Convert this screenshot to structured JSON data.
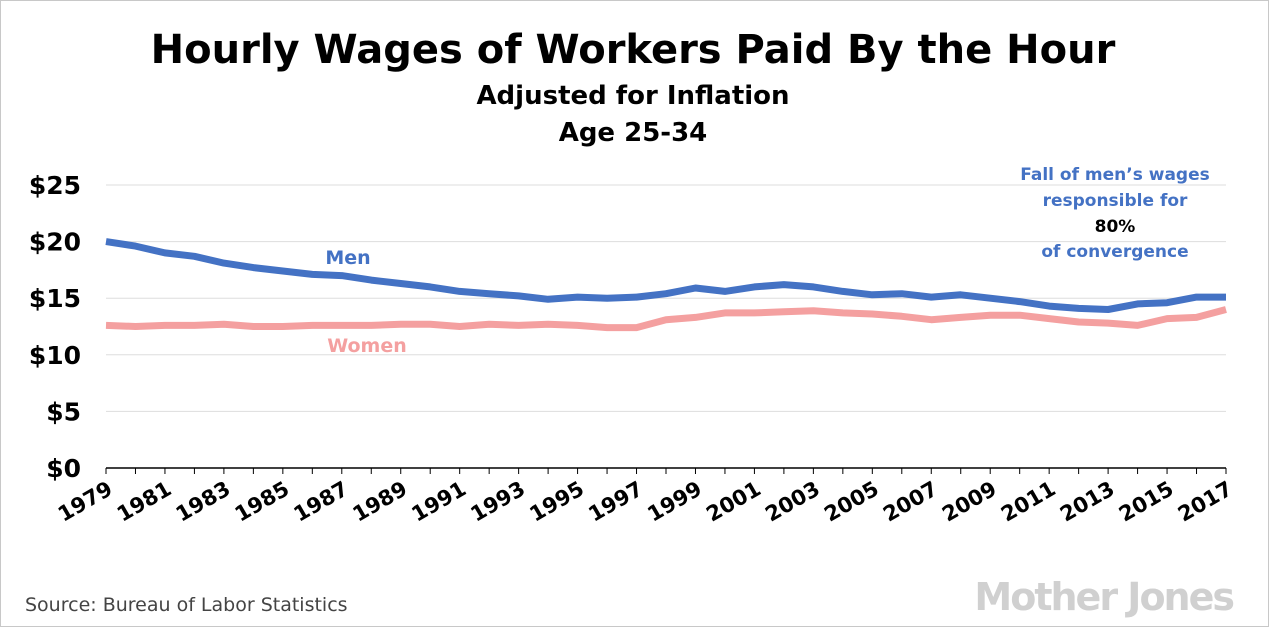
{
  "chart_data": {
    "type": "line",
    "title": "Hourly Wages of Workers Paid By the Hour",
    "subtitle_lines": [
      "Adjusted for Inflation",
      "Age 25-34"
    ],
    "x": [
      1979,
      1980,
      1981,
      1982,
      1983,
      1984,
      1985,
      1986,
      1987,
      1988,
      1989,
      1990,
      1991,
      1992,
      1993,
      1994,
      1995,
      1996,
      1997,
      1998,
      1999,
      2000,
      2001,
      2002,
      2003,
      2004,
      2005,
      2006,
      2007,
      2008,
      2009,
      2010,
      2011,
      2012,
      2013,
      2014,
      2015,
      2016,
      2017
    ],
    "xticks": [
      1979,
      1981,
      1983,
      1985,
      1987,
      1989,
      1991,
      1993,
      1995,
      1997,
      1999,
      2001,
      2003,
      2005,
      2007,
      2009,
      2011,
      2013,
      2015,
      2017
    ],
    "xtick_labels": [
      "1979",
      "1981",
      "1983",
      "1985",
      "1987",
      "1989",
      "1991",
      "1993",
      "1995",
      "1997",
      "1999",
      "2001",
      "2003",
      "2005",
      "2007",
      "2009",
      "2011",
      "2013",
      "2015",
      "2017"
    ],
    "yticks": [
      0,
      5,
      10,
      15,
      20,
      25
    ],
    "ytick_labels": [
      "$0",
      "$5",
      "$10",
      "$15",
      "$20",
      "$25"
    ],
    "ylim": [
      0,
      25
    ],
    "grid": true,
    "series": [
      {
        "name": "Men",
        "color": "#4472c4",
        "values": [
          20.0,
          19.6,
          19.0,
          18.7,
          18.1,
          17.7,
          17.4,
          17.1,
          17.0,
          16.6,
          16.3,
          16.0,
          15.6,
          15.4,
          15.2,
          14.9,
          15.1,
          15.0,
          15.1,
          15.4,
          15.9,
          15.6,
          16.0,
          16.2,
          16.0,
          15.6,
          15.3,
          15.4,
          15.1,
          15.3,
          15.0,
          14.7,
          14.3,
          14.1,
          14.0,
          14.5,
          14.6,
          15.1,
          15.1
        ]
      },
      {
        "name": "Women",
        "color": "#f4a0a0",
        "values": [
          12.6,
          12.5,
          12.6,
          12.6,
          12.7,
          12.5,
          12.5,
          12.6,
          12.6,
          12.6,
          12.7,
          12.7,
          12.5,
          12.7,
          12.6,
          12.7,
          12.6,
          12.4,
          12.4,
          13.1,
          13.3,
          13.7,
          13.7,
          13.8,
          13.9,
          13.7,
          13.6,
          13.4,
          13.1,
          13.3,
          13.5,
          13.5,
          13.2,
          12.9,
          12.8,
          12.6,
          13.2,
          13.3,
          14.0
        ]
      }
    ],
    "annotation": {
      "lines": [
        {
          "text": "Fall of men’s wages",
          "color": "#4472c4"
        },
        {
          "text": "responsible for",
          "color": "#4472c4"
        },
        {
          "text": "80%",
          "color": "#000000"
        },
        {
          "text": "of convergence",
          "color": "#4472c4"
        }
      ]
    }
  },
  "footer": {
    "source": "Source: Bureau of Labor Statistics",
    "logo": "Mother Jones"
  },
  "colors": {
    "grid": "#dddddd",
    "axis": "#000000"
  }
}
